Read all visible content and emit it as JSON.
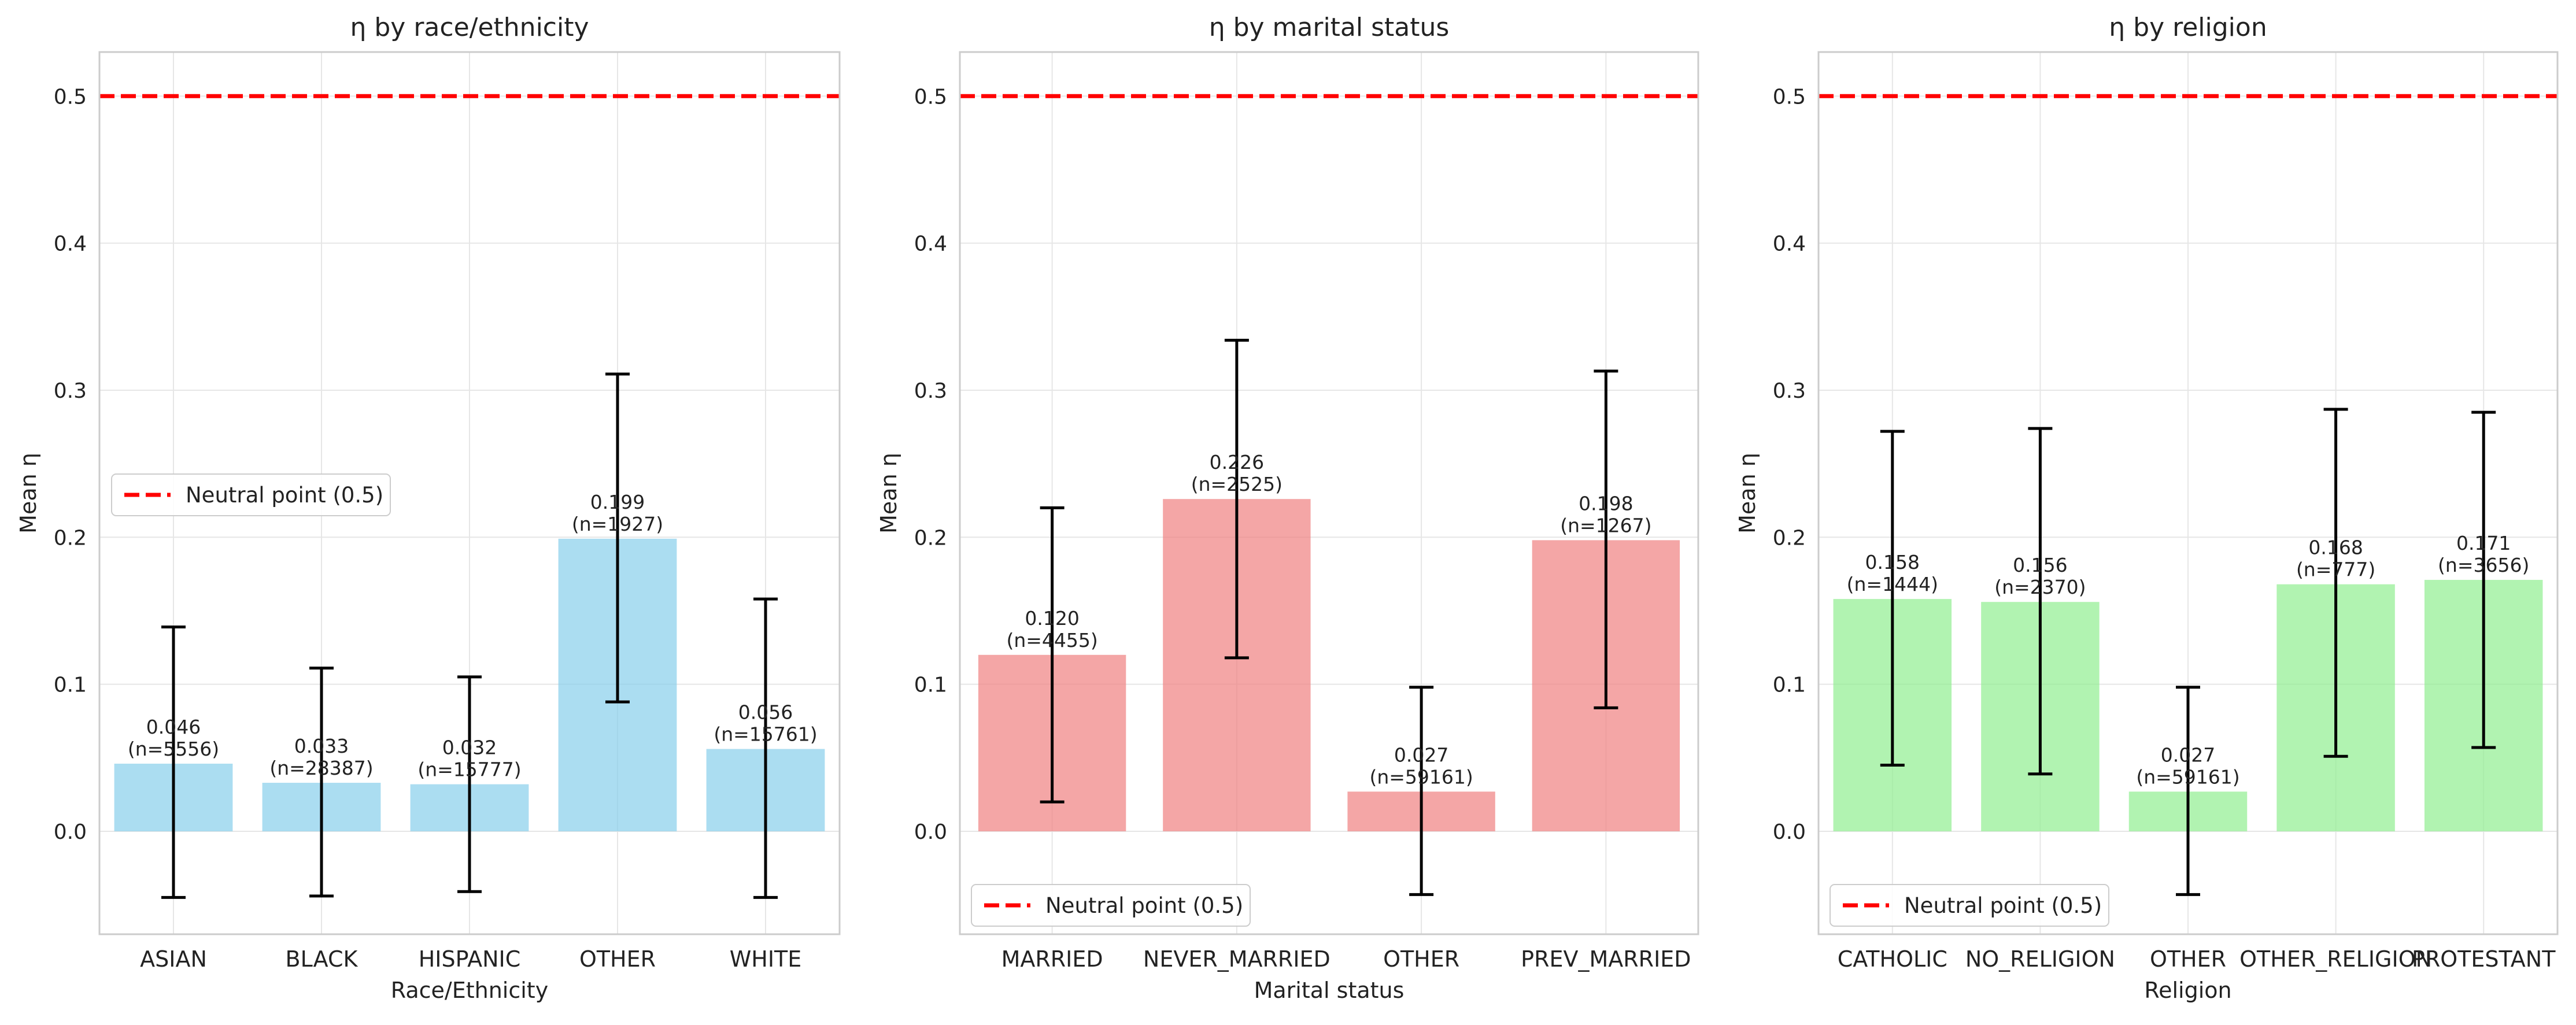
{
  "chart_data": [
    {
      "type": "bar",
      "title": "η by race/ethnicity",
      "xlabel": "Race/Ethnicity",
      "ylabel": "Mean η",
      "ylim": [
        -0.07,
        0.53
      ],
      "yticks": [
        "0.0",
        "0.1",
        "0.2",
        "0.3",
        "0.4",
        "0.5"
      ],
      "grid": true,
      "bar_color": "#87CEEB",
      "categories": [
        "ASIAN",
        "BLACK",
        "HISPANIC",
        "OTHER",
        "WHITE"
      ],
      "values": [
        0.046,
        0.033,
        0.032,
        0.199,
        0.056
      ],
      "error_low": [
        -0.045,
        -0.044,
        -0.041,
        0.088,
        -0.045
      ],
      "error_high": [
        0.139,
        0.111,
        0.105,
        0.311,
        0.158
      ],
      "labels": [
        {
          "value": "0.046",
          "n": "(n=5556)"
        },
        {
          "value": "0.033",
          "n": "(n=28387)"
        },
        {
          "value": "0.032",
          "n": "(n=15777)"
        },
        {
          "value": "0.199",
          "n": "(n=1927)"
        },
        {
          "value": "0.056",
          "n": "(n=15761)"
        }
      ],
      "reference_line": {
        "y": 0.5,
        "label": "Neutral point (0.5)",
        "color": "#ff0000",
        "style": "dashed"
      },
      "legend": {
        "entry": "Neutral point (0.5)",
        "placement": "center-left"
      }
    },
    {
      "type": "bar",
      "title": "η by marital status",
      "xlabel": "Marital status",
      "ylabel": "Mean η",
      "ylim": [
        -0.07,
        0.53
      ],
      "yticks": [
        "0.0",
        "0.1",
        "0.2",
        "0.3",
        "0.4",
        "0.5"
      ],
      "grid": true,
      "bar_color": "#F08080",
      "categories": [
        "MARRIED",
        "NEVER_MARRIED",
        "OTHER",
        "PREV_MARRIED"
      ],
      "values": [
        0.12,
        0.226,
        0.027,
        0.198
      ],
      "error_low": [
        0.02,
        0.118,
        -0.043,
        0.084
      ],
      "error_high": [
        0.22,
        0.334,
        0.098,
        0.313
      ],
      "labels": [
        {
          "value": "0.120",
          "n": "(n=4455)"
        },
        {
          "value": "0.226",
          "n": "(n=2525)"
        },
        {
          "value": "0.027",
          "n": "(n=59161)"
        },
        {
          "value": "0.198",
          "n": "(n=1267)"
        }
      ],
      "reference_line": {
        "y": 0.5,
        "label": "Neutral point (0.5)",
        "color": "#ff0000",
        "style": "dashed"
      },
      "legend": {
        "entry": "Neutral point (0.5)",
        "placement": "lower-left"
      }
    },
    {
      "type": "bar",
      "title": "η by religion",
      "xlabel": "Religion",
      "ylabel": "Mean η",
      "ylim": [
        -0.07,
        0.53
      ],
      "yticks": [
        "0.0",
        "0.1",
        "0.2",
        "0.3",
        "0.4",
        "0.5"
      ],
      "grid": true,
      "bar_color": "#90EE90",
      "categories": [
        "CATHOLIC",
        "NO_RELIGION",
        "OTHER",
        "OTHER_RELIGION",
        "PROTESTANT"
      ],
      "values": [
        0.158,
        0.156,
        0.027,
        0.168,
        0.171
      ],
      "error_low": [
        0.045,
        0.039,
        -0.043,
        0.051,
        0.057
      ],
      "error_high": [
        0.272,
        0.274,
        0.098,
        0.287,
        0.285
      ],
      "labels": [
        {
          "value": "0.158",
          "n": "(n=1444)"
        },
        {
          "value": "0.156",
          "n": "(n=2370)"
        },
        {
          "value": "0.027",
          "n": "(n=59161)"
        },
        {
          "value": "0.168",
          "n": "(n=777)"
        },
        {
          "value": "0.171",
          "n": "(n=3656)"
        }
      ],
      "reference_line": {
        "y": 0.5,
        "label": "Neutral point (0.5)",
        "color": "#ff0000",
        "style": "dashed"
      },
      "legend": {
        "entry": "Neutral point (0.5)",
        "placement": "lower-left"
      }
    }
  ]
}
